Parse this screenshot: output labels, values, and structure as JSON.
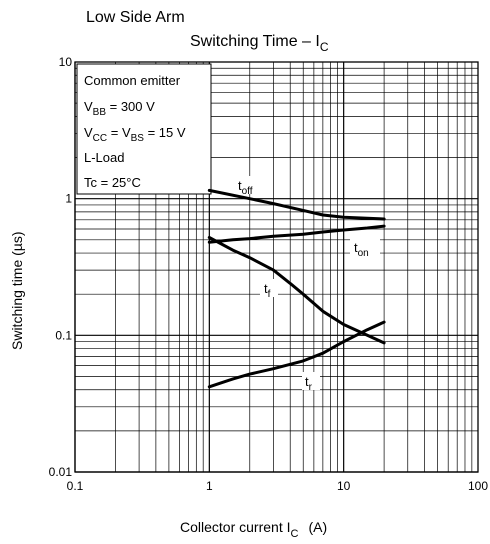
{
  "chart_data": {
    "type": "line",
    "supertitle": "Low Side Arm",
    "title_main": "Switching Time – I",
    "title_sub": "C",
    "xlabel_main": "Collector current   I",
    "xlabel_sub": "C",
    "xlabel_unit": "(A)",
    "ylabel": "Switching time   (µs)",
    "x_scale": "log",
    "y_scale": "log",
    "xlim": [
      0.1,
      100
    ],
    "ylim": [
      0.01,
      10
    ],
    "grid": true,
    "x_ticks": [
      {
        "value": 0.1,
        "label": "0.1"
      },
      {
        "value": 1,
        "label": "1"
      },
      {
        "value": 10,
        "label": "10"
      },
      {
        "value": 100,
        "label": "100"
      }
    ],
    "y_ticks": [
      {
        "value": 0.01,
        "label": "0.01"
      },
      {
        "value": 0.1,
        "label": "0.1"
      },
      {
        "value": 1,
        "label": "1"
      },
      {
        "value": 10,
        "label": "10"
      }
    ],
    "conditions": [
      {
        "main": "Common emitter",
        "sub": "",
        "tail": ""
      },
      {
        "main": "V",
        "sub": "BB",
        "tail": " = 300 V"
      },
      {
        "main": "V",
        "sub": "CC",
        "tail": " = V"
      },
      {
        "main": "L-Load",
        "sub": "",
        "tail": ""
      },
      {
        "main": "Tc = 25°C",
        "sub": "",
        "tail": ""
      }
    ],
    "condition_line3_part2": {
      "sub": "BS",
      "tail": " = 15 V"
    },
    "series": [
      {
        "label_main": "t",
        "label_sub": "off",
        "x": [
          1,
          2,
          3,
          5,
          7,
          10,
          15,
          20
        ],
        "y": [
          1.15,
          1.0,
          0.92,
          0.82,
          0.76,
          0.73,
          0.72,
          0.71
        ]
      },
      {
        "label_main": "t",
        "label_sub": "on",
        "x": [
          1,
          1.5,
          2,
          3,
          5,
          7,
          10,
          15,
          20
        ],
        "y": [
          0.48,
          0.5,
          0.51,
          0.53,
          0.55,
          0.57,
          0.59,
          0.61,
          0.63
        ]
      },
      {
        "label_main": "t",
        "label_sub": "f",
        "x": [
          1,
          1.5,
          2,
          3,
          4,
          5,
          7,
          10,
          15,
          20
        ],
        "y": [
          0.52,
          0.42,
          0.37,
          0.3,
          0.24,
          0.2,
          0.15,
          0.12,
          0.1,
          0.088
        ]
      },
      {
        "label_main": "t",
        "label_sub": "r",
        "x": [
          1,
          1.5,
          2,
          3,
          5,
          7,
          10,
          15,
          20
        ],
        "y": [
          0.042,
          0.048,
          0.052,
          0.057,
          0.065,
          0.074,
          0.09,
          0.11,
          0.125
        ]
      }
    ]
  }
}
